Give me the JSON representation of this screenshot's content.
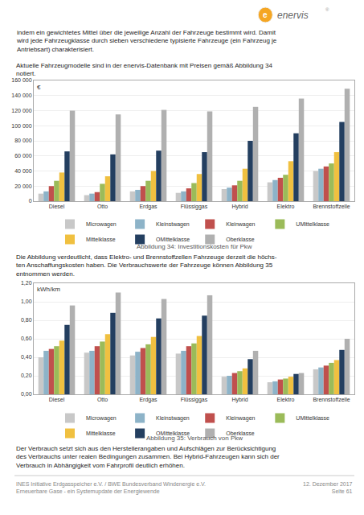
{
  "chart_data": [
    {
      "type": "bar",
      "title": "Abbildung 34: Investitionskosten für Pkw",
      "ylabel": "€",
      "categories": [
        "Diesel",
        "Otto",
        "Erdgas",
        "Flüssiggas",
        "Hybrid",
        "Elektro",
        "Brennstoffzelle"
      ],
      "series": [
        {
          "name": "Microwagen",
          "color": "#c8c8c8",
          "values": [
            10000,
            8000,
            13000,
            11000,
            16000,
            25000,
            40000
          ]
        },
        {
          "name": "Kleinstwagen",
          "color": "#8db3c8",
          "values": [
            13000,
            10000,
            15000,
            13000,
            18000,
            28000,
            43000
          ]
        },
        {
          "name": "Kleinwagen",
          "color": "#c0504d",
          "values": [
            20000,
            12000,
            20000,
            17000,
            21000,
            31000,
            46000
          ]
        },
        {
          "name": "UMittelklasse",
          "color": "#9bbb59",
          "values": [
            27000,
            23000,
            27000,
            24000,
            27000,
            35000,
            50000
          ]
        },
        {
          "name": "Mittelklasse",
          "color": "#f0c040",
          "values": [
            38000,
            33000,
            40000,
            36000,
            43000,
            53000,
            65000
          ]
        },
        {
          "name": "OMittelklasse",
          "color": "#243f60",
          "values": [
            66000,
            62000,
            67000,
            65000,
            80000,
            90000,
            105000
          ]
        },
        {
          "name": "Oberklasse",
          "color": "#b0b0b0",
          "values": [
            120000,
            115000,
            121000,
            119000,
            125000,
            136000,
            149000
          ]
        }
      ],
      "ylim": [
        0,
        160000
      ],
      "yticks": [
        0,
        {
          "value": 20000,
          "label": "20 000"
        },
        {
          "value": 40000,
          "label": "40 000"
        },
        {
          "value": 60000,
          "label": "60 000"
        },
        {
          "value": 80000,
          "label": "80 000"
        },
        {
          "value": 100000,
          "label": "100 000"
        },
        {
          "value": 120000,
          "label": "120 000"
        },
        {
          "value": 140000,
          "label": "140 000"
        },
        {
          "value": 160000,
          "label": "160 000"
        }
      ],
      "grid": true,
      "legend": "bottom",
      "annotations": [
        "e",
        "enervis",
        "®",
        "indem ein gewichtetes Mittel über die jeweilige Anzahl der Fahrzeuge bestimmt wird. Damit\nwird jede Fahrzeugklasse durch sieben verschiedene typisierte Fahrzeuge (ein Fahrzeug je\nAntriebsart) charakterisiert.",
        "Aktuelle Fahrzeugmodelle sind in der enervis-Datenbank mit Preisen gemäß Abbildung 34\nnotiert.",
        "Die Abbildung verdeutlicht, dass Elektro- und Brennstoffzellen Fahrzeuge derzeit die höchs-\nten Anschaffungskosten haben. Die Verbrauchswerte der Fahrzeuge können Abbildung 35\nentnommen werden."
      ]
    },
    {
      "type": "bar",
      "title": "Abbildung 35: Verbrauch von Pkw",
      "ylabel": "kWh/km",
      "categories": [
        "Diesel",
        "Otto",
        "Erdgas",
        "Flüssiggas",
        "Hybrid",
        "Elektro",
        "Brennstoffzelle"
      ],
      "series": [
        {
          "name": "Microwagen",
          "color": "#c8c8c8",
          "values": [
            0.4,
            0.45,
            0.42,
            0.44,
            0.19,
            0.13,
            0.27
          ]
        },
        {
          "name": "Kleinstwagen",
          "color": "#8db3c8",
          "values": [
            0.47,
            0.47,
            0.46,
            0.47,
            0.2,
            0.14,
            0.29
          ]
        },
        {
          "name": "Kleinwagen",
          "color": "#c0504d",
          "values": [
            0.49,
            0.52,
            0.5,
            0.52,
            0.23,
            0.16,
            0.31
          ]
        },
        {
          "name": "UMittelklasse",
          "color": "#9bbb59",
          "values": [
            0.52,
            0.57,
            0.54,
            0.55,
            0.25,
            0.17,
            0.34
          ]
        },
        {
          "name": "Mittelklasse",
          "color": "#f0c040",
          "values": [
            0.58,
            0.65,
            0.62,
            0.63,
            0.28,
            0.19,
            0.37
          ]
        },
        {
          "name": "OMittelklasse",
          "color": "#243f60",
          "values": [
            0.75,
            0.88,
            0.82,
            0.85,
            0.38,
            0.22,
            0.48
          ]
        },
        {
          "name": "Oberklasse",
          "color": "#b0b0b0",
          "values": [
            0.96,
            1.1,
            1.03,
            1.07,
            0.47,
            0.23,
            0.6
          ]
        }
      ],
      "ylim": [
        0,
        1.2
      ],
      "yticks": [
        {
          "value": 0.0,
          "label": "0,00"
        },
        {
          "value": 0.2,
          "label": "0,20"
        },
        {
          "value": 0.4,
          "label": "0,40"
        },
        {
          "value": 0.6,
          "label": "0,60"
        },
        {
          "value": 0.8,
          "label": "0,80"
        },
        {
          "value": 1.0,
          "label": "1,00"
        },
        {
          "value": 1.2,
          "label": "1,20"
        }
      ],
      "grid": true,
      "legend": "bottom",
      "annotations": [
        "Der Verbrauch setzt sich aus den Herstellerangaben und Aufschlägen zur Berücksichtigung\ndes Verbrauchs unter realen Bedingungen zusammen. Bei Hybrid-Fahrzeugen kann sich der\nVerbrauch in Abhängigkeit vom Fahrprofil deutlich erhöhen.",
        "INES Initiative Erdgasspeicher e.V. / BWE Bundesverband Windenergie e.V.\nErneuerbare Gase - ein Systemupdate der Energiewende",
        "12. Dezember 2017\nSeite 61"
      ]
    }
  ]
}
